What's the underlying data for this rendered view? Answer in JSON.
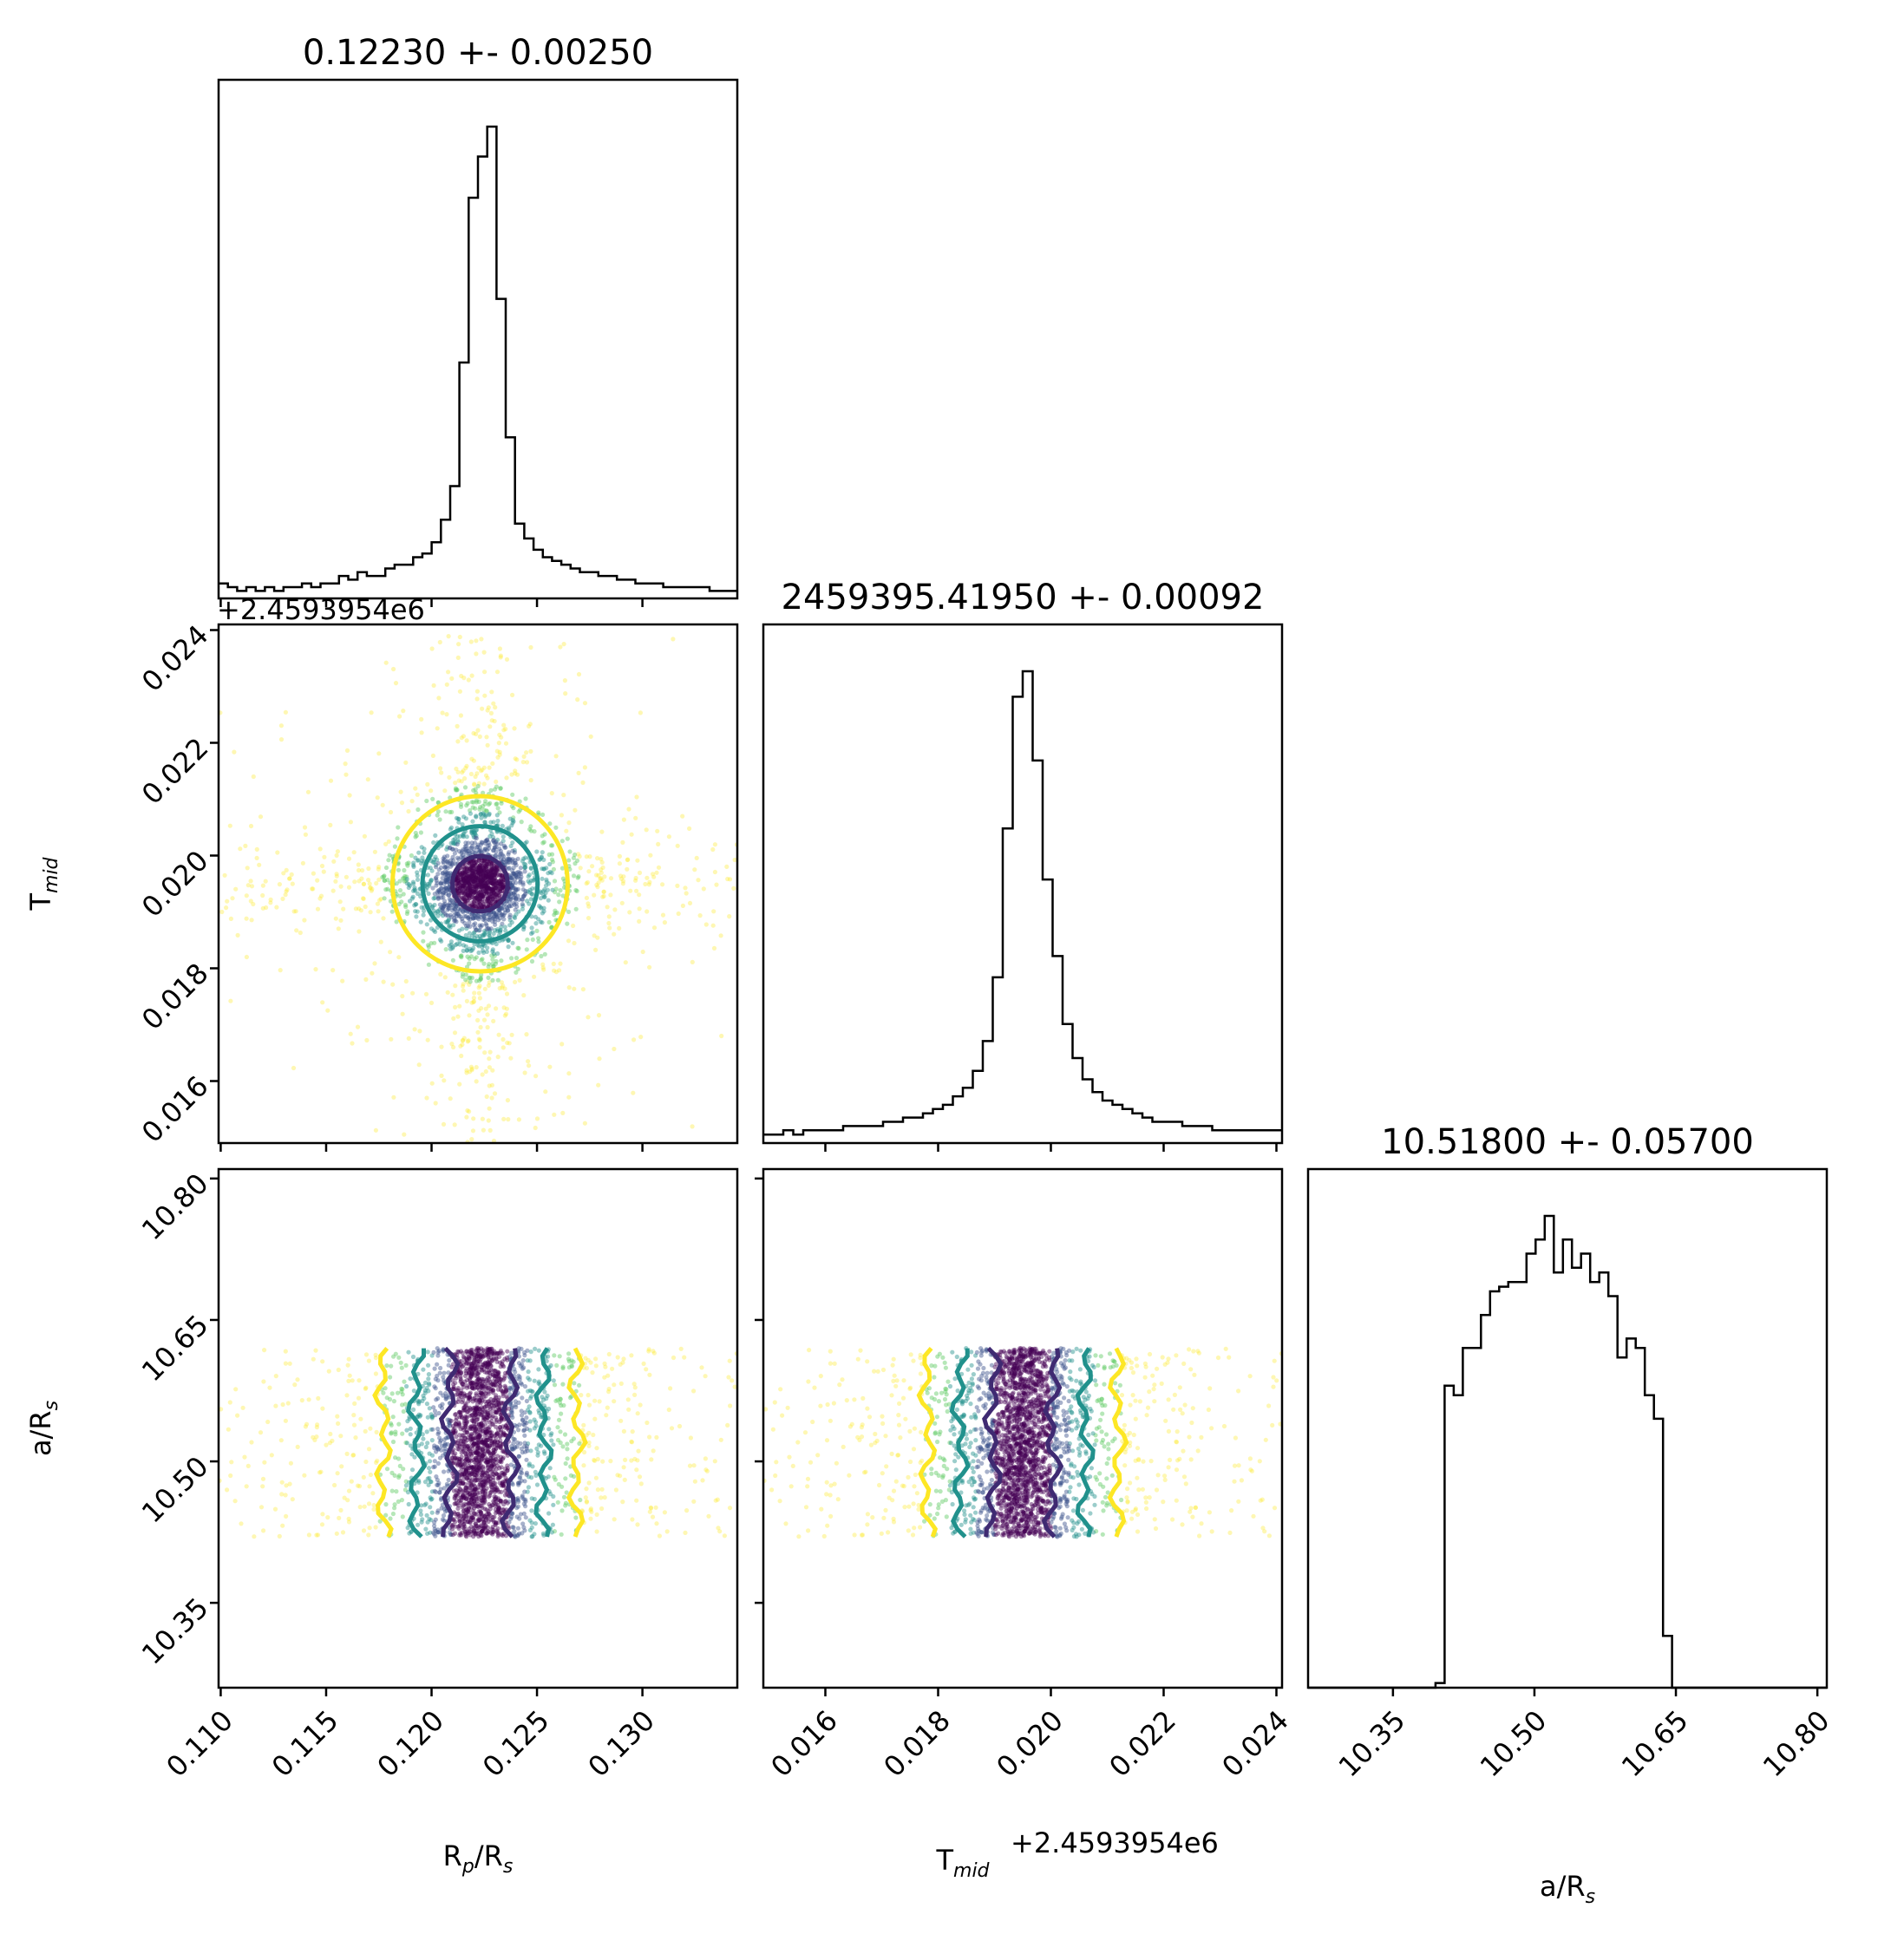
{
  "chart_data": {
    "type": "corner",
    "params": [
      {
        "key": "rp",
        "label": "R",
        "label_sub": "p",
        "label_tail": "/R",
        "label_sub2": "s",
        "range": [
          0.1099,
          0.1345
        ],
        "ticks": [
          "0.110",
          "0.115",
          "0.120",
          "0.125",
          "0.130"
        ],
        "tick_values": [
          0.11,
          0.115,
          0.12,
          0.125,
          0.13
        ],
        "title": "0.12230 +- 0.00250",
        "mean": 0.1223,
        "sigma": 0.0025,
        "shape": "peaked",
        "offset": ""
      },
      {
        "key": "tmid",
        "label": "T",
        "label_sub": "mid",
        "label_tail": "",
        "label_sub2": "",
        "range": [
          0.0149,
          0.0241
        ],
        "ticks": [
          "0.016",
          "0.018",
          "0.020",
          "0.022",
          "0.024"
        ],
        "tick_values": [
          0.016,
          0.018,
          0.02,
          0.022,
          0.024
        ],
        "title": "2459395.41950 +- 0.00092",
        "mean": 0.0195,
        "sigma": 0.00092,
        "shape": "peaked",
        "offset": "+2.4593954e6"
      },
      {
        "key": "ar",
        "label": "a/R",
        "label_sub": "s",
        "label_tail": "",
        "label_sub2": "",
        "range": [
          10.26,
          10.81
        ],
        "ticks": [
          "10.35",
          "10.50",
          "10.65",
          "10.80"
        ],
        "tick_values": [
          10.35,
          10.5,
          10.65,
          10.8
        ],
        "title": "10.51800 +- 0.05700",
        "mean": 10.518,
        "sigma": 0.057,
        "shape": "uniform",
        "uniform_range": [
          10.42,
          10.62
        ],
        "offset": ""
      }
    ],
    "marginal_hist": {
      "rp_counts": [
        4,
        3,
        2,
        3,
        2,
        3,
        2,
        3,
        3,
        4,
        3,
        4,
        4,
        6,
        5,
        7,
        6,
        6,
        8,
        9,
        9,
        11,
        12,
        15,
        21,
        30,
        63,
        107,
        118,
        126,
        80,
        43,
        20,
        16,
        13,
        11,
        10,
        9,
        8,
        7,
        7,
        6,
        6,
        5,
        5,
        4,
        4,
        4,
        3,
        3,
        3,
        3,
        3,
        2,
        2,
        2
      ],
      "tmid_counts": [
        2,
        2,
        3,
        2,
        3,
        3,
        3,
        3,
        4,
        4,
        4,
        4,
        5,
        5,
        6,
        6,
        7,
        8,
        9,
        11,
        13,
        17,
        24,
        39,
        74,
        105,
        111,
        90,
        62,
        44,
        28,
        20,
        15,
        12,
        10,
        9,
        8,
        7,
        6,
        5,
        5,
        5,
        4,
        4,
        4,
        3,
        3,
        3,
        3,
        3,
        3,
        3
      ],
      "ar_counts": [
        0,
        0,
        0,
        0,
        0,
        0,
        0,
        0,
        0,
        0,
        0,
        0,
        0,
        0,
        1,
        64,
        62,
        72,
        72,
        79,
        84,
        85,
        86,
        86,
        92,
        95,
        100,
        88,
        95,
        89,
        92,
        86,
        88,
        83,
        70,
        74,
        72,
        62,
        57,
        11,
        0,
        0,
        0,
        0,
        0,
        0,
        0,
        0,
        0,
        0,
        0,
        0,
        0,
        0,
        0,
        0,
        0
      ]
    },
    "contour_levels": [
      "1-sigma",
      "2-sigma",
      "3-sigma"
    ],
    "colors": {
      "viridis": [
        "#440154",
        "#3b528b",
        "#21918c",
        "#5ec962",
        "#fde725"
      ],
      "contour_inner": "#3f2a72",
      "contour_mid": "#21918c",
      "contour_outer": "#fde725",
      "hist_line": "#000000"
    }
  }
}
